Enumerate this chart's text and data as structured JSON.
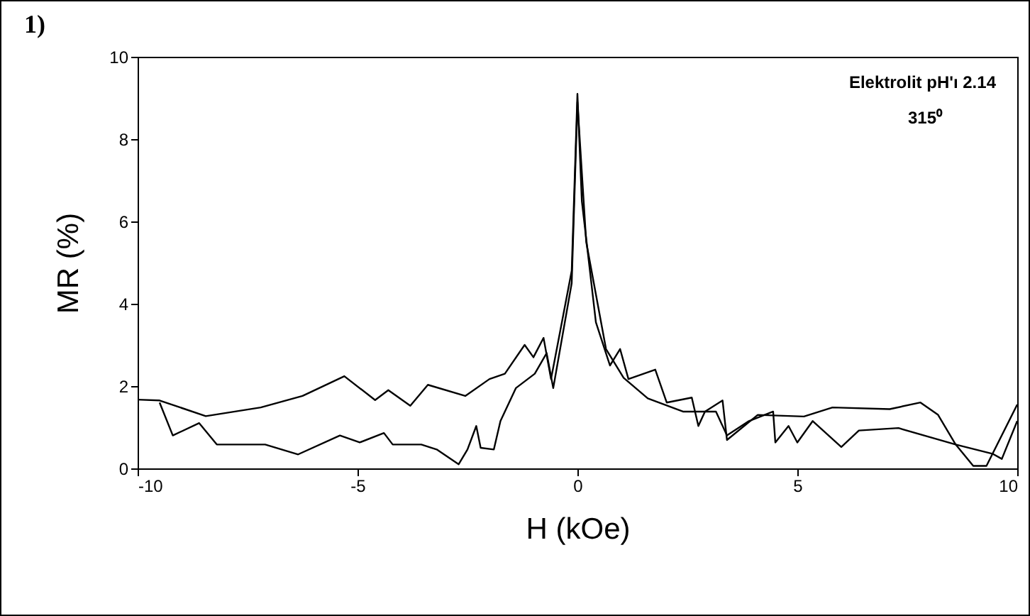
{
  "chart_data": {
    "type": "line",
    "xlabel": "H (kOe)",
    "ylabel": "MR (%)",
    "annotations": [
      "1)",
      "Elektrolit pH'ı 2.14",
      "315⁰"
    ],
    "xlim": [
      -10,
      10
    ],
    "ylim": [
      0,
      10
    ],
    "xticks": [
      -10,
      -5,
      0,
      5,
      10
    ],
    "yticks": [
      0,
      2,
      4,
      6,
      8,
      10
    ],
    "grid": false,
    "legend": false,
    "line_style": "solid",
    "series": [
      {
        "color": "#000000",
        "x": [
          -10,
          -9.5,
          -8.45,
          -7.2,
          -6.25,
          -5.3,
          -4.6,
          -4.3,
          -3.8,
          -3.4,
          -2.55,
          -2.0,
          -1.65,
          -1.2,
          -1.0,
          -0.77,
          -0.6,
          -0.13,
          0,
          0.1,
          0.42,
          0.74,
          0.97,
          1.16,
          1.77,
          2.03,
          2.6,
          2.75,
          2.9,
          3.3,
          3.4,
          4.1,
          5.15,
          5.8,
          7.1,
          7.8,
          8.2,
          8.6,
          9.0,
          9.3,
          10
        ],
        "values": [
          1.67,
          1.65,
          1.27,
          1.48,
          1.76,
          2.24,
          1.66,
          1.9,
          1.52,
          2.03,
          1.76,
          2.17,
          2.3,
          3.0,
          2.7,
          3.17,
          2.17,
          4.8,
          9.1,
          6.5,
          3.55,
          2.5,
          2.9,
          2.17,
          2.4,
          1.6,
          1.72,
          1.03,
          1.38,
          1.65,
          0.69,
          1.3,
          1.26,
          1.48,
          1.44,
          1.6,
          1.3,
          0.58,
          0.06,
          0.06,
          1.55
        ]
      },
      {
        "color": "#000000",
        "x": [
          -9.5,
          -9.2,
          -8.6,
          -8.2,
          -7.1,
          -6.35,
          -5.4,
          -4.95,
          -4.4,
          -4.2,
          -3.55,
          -3.2,
          -2.7,
          -2.5,
          -2.3,
          -2.2,
          -1.9,
          -1.75,
          -1.4,
          -0.97,
          -0.7,
          -0.55,
          -0.13,
          0,
          0.2,
          0.65,
          1.05,
          1.6,
          2.4,
          3.15,
          3.4,
          3.9,
          4.45,
          4.5,
          4.8,
          5.0,
          5.35,
          6.0,
          6.4,
          7.3,
          8.6,
          9.45,
          9.65,
          10
        ],
        "values": [
          1.6,
          0.8,
          1.1,
          0.58,
          0.58,
          0.34,
          0.8,
          0.63,
          0.86,
          0.58,
          0.58,
          0.46,
          0.1,
          0.46,
          1.03,
          0.5,
          0.46,
          1.15,
          1.95,
          2.3,
          2.8,
          1.95,
          4.5,
          8.9,
          5.5,
          2.9,
          2.2,
          1.7,
          1.38,
          1.38,
          0.8,
          1.15,
          1.38,
          0.63,
          1.03,
          0.63,
          1.15,
          0.52,
          0.92,
          0.98,
          0.58,
          0.35,
          0.23,
          1.15
        ]
      }
    ]
  }
}
